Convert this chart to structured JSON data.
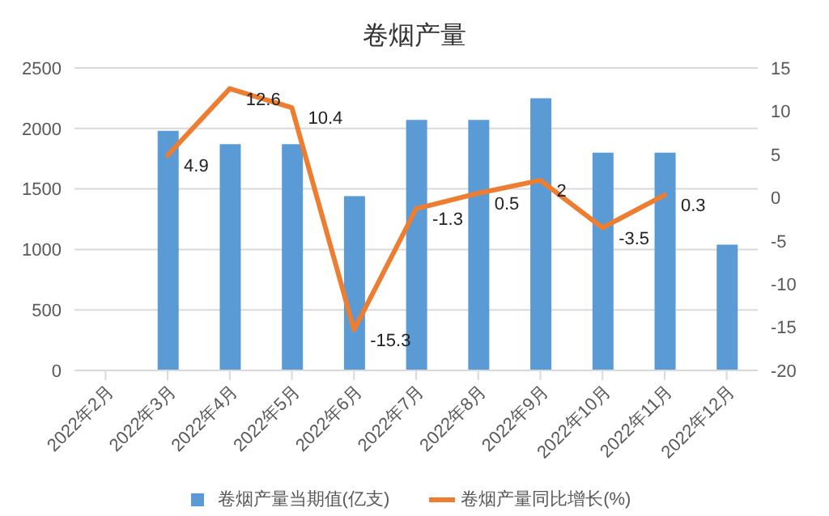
{
  "chart_data": {
    "type": "bar",
    "title": "卷烟产量",
    "categories": [
      "2022年2月",
      "2022年3月",
      "2022年4月",
      "2022年5月",
      "2022年6月",
      "2022年7月",
      "2022年8月",
      "2022年9月",
      "2022年10月",
      "2022年11月",
      "2022年12月"
    ],
    "series": [
      {
        "name": "卷烟产量当期值(亿支)",
        "color": "#5b9bd5",
        "values": [
          null,
          1980,
          1870,
          1870,
          1440,
          2070,
          2070,
          2250,
          1800,
          1800,
          1040
        ]
      },
      {
        "name": "卷烟产量同比增长(%)",
        "type": "line",
        "axis": "y2",
        "color": "#ed7d31",
        "marker": "none",
        "values": [
          null,
          4.9,
          12.6,
          10.4,
          -15.3,
          -1.3,
          0.5,
          2,
          -3.5,
          0.3,
          null
        ],
        "value_labels": [
          null,
          "4.9",
          "12.6",
          "10.4",
          "-15.3",
          "-1.3",
          "0.5",
          "2",
          "-3.5",
          "0.3",
          null
        ]
      }
    ],
    "ylim": [
      0,
      2500
    ],
    "yticks": [
      0,
      500,
      1000,
      1500,
      2000,
      2500
    ],
    "y2lim": [
      -20,
      15
    ],
    "y2ticks": [
      -20,
      -15,
      -10,
      -5,
      0,
      5,
      10,
      15
    ],
    "grid": "y",
    "legend": "bottom"
  }
}
